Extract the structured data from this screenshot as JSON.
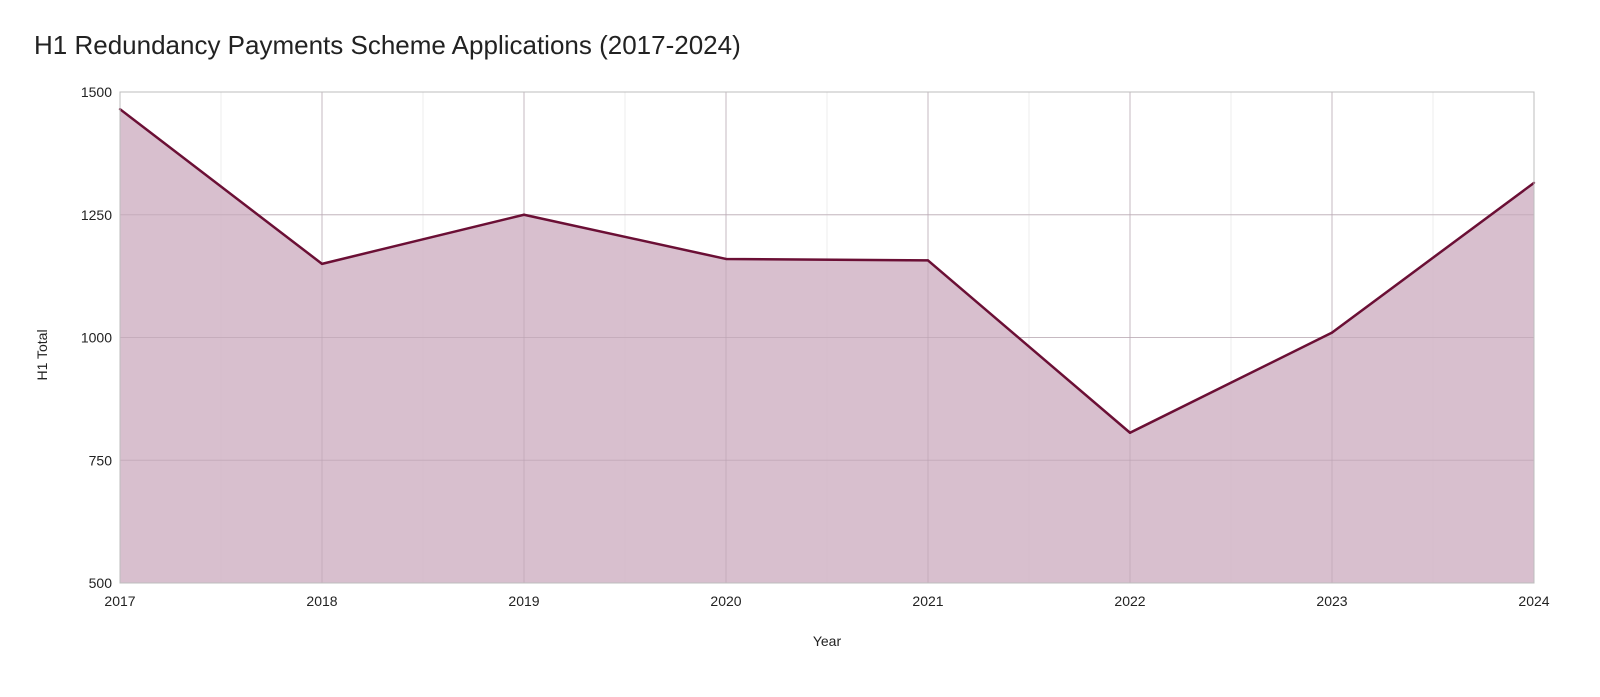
{
  "chart_data": {
    "type": "area",
    "title": "H1 Redundancy Payments Scheme Applications (2017-2024)",
    "xlabel": "Year",
    "ylabel": "H1 Total",
    "categories": [
      "2017",
      "2018",
      "2019",
      "2020",
      "2021",
      "2022",
      "2023",
      "2024"
    ],
    "series": [
      {
        "values": [
          1465,
          1150,
          1250,
          1160,
          1157,
          806,
          1010,
          1315
        ]
      }
    ],
    "ylim": [
      500,
      1500
    ],
    "yticks": [
      500,
      750,
      1000,
      1250,
      1500
    ],
    "grid": true,
    "legend": "none",
    "colors": {
      "line": "#6b0f35",
      "fill": "#d4b8c9",
      "grid": "#d6d6d6",
      "grid_minor": "#ececec",
      "axis": "#bdbdbd"
    }
  }
}
